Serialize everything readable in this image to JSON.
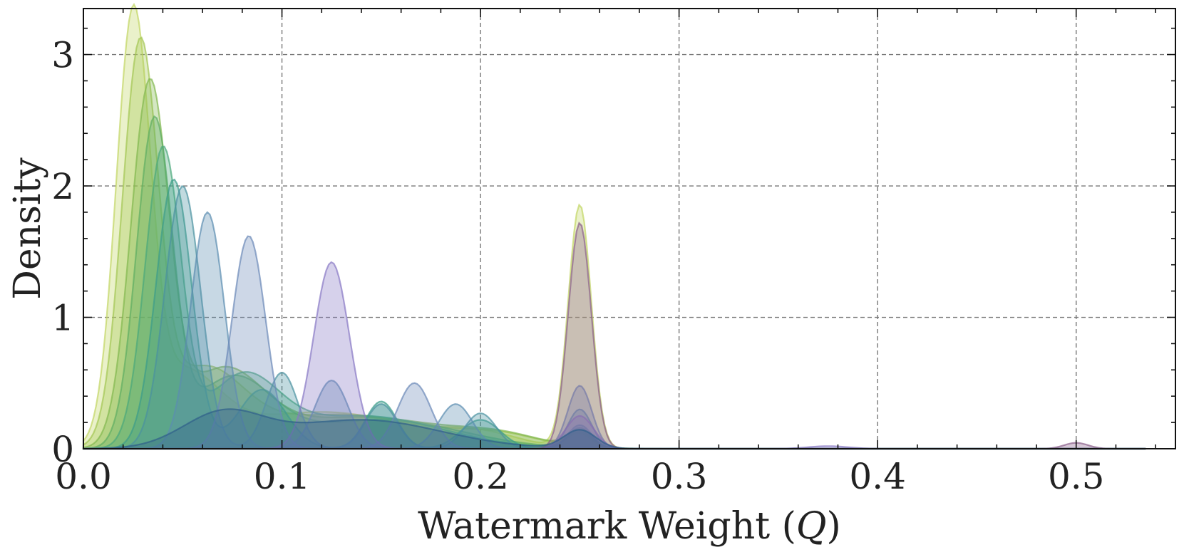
{
  "chart_data": {
    "type": "area",
    "xlabel": "Watermark Weight (",
    "xlabel_var": "Q",
    "xlabel_close": ")",
    "ylabel": "Density",
    "xlim": [
      0.0,
      0.55
    ],
    "ylim": [
      0,
      3.35
    ],
    "xticks": [
      "0.0",
      "0.1",
      "0.2",
      "0.3",
      "0.4",
      "0.5"
    ],
    "yticks": [
      "0",
      "1",
      "2",
      "3"
    ],
    "grid": true,
    "legend": "none",
    "series": [
      {
        "color": "#c2d563",
        "components": [
          [
            0.025,
            3.15,
            0.0085
          ],
          [
            0.05,
            0.52,
            0.018
          ],
          [
            0.12,
            0.28,
            0.045
          ],
          [
            0.2,
            0.09,
            0.02
          ],
          [
            0.25,
            1.85,
            0.0058
          ]
        ]
      },
      {
        "color": "#a3c653",
        "components": [
          [
            0.0285,
            2.95,
            0.009
          ],
          [
            0.06,
            0.55,
            0.02
          ],
          [
            0.13,
            0.26,
            0.045
          ],
          [
            0.21,
            0.08,
            0.02
          ],
          [
            0.25,
            0.1,
            0.0058
          ]
        ]
      },
      {
        "color": "#82b84e",
        "components": [
          [
            0.0333,
            2.7,
            0.0095
          ],
          [
            0.07,
            0.55,
            0.02
          ],
          [
            0.14,
            0.24,
            0.045
          ],
          [
            0.21,
            0.07,
            0.02
          ],
          [
            0.25,
            0.12,
            0.006
          ]
        ]
      },
      {
        "color": "#5fae63",
        "components": [
          [
            0.0357,
            2.45,
            0.009
          ],
          [
            0.075,
            0.52,
            0.02
          ],
          [
            0.15,
            0.22,
            0.04
          ],
          [
            0.25,
            0.12,
            0.006
          ]
        ]
      },
      {
        "color": "#4aa87a",
        "components": [
          [
            0.04,
            2.25,
            0.009
          ],
          [
            0.08,
            0.5,
            0.018
          ],
          [
            0.14,
            0.25,
            0.04
          ],
          [
            0.25,
            0.14,
            0.006
          ]
        ]
      },
      {
        "color": "#3c9c8a",
        "components": [
          [
            0.0455,
            2.05,
            0.009
          ],
          [
            0.09,
            0.45,
            0.012
          ],
          [
            0.15,
            0.36,
            0.008
          ],
          [
            0.2,
            0.22,
            0.01
          ],
          [
            0.25,
            0.16,
            0.006
          ]
        ]
      },
      {
        "color": "#4a92a0",
        "components": [
          [
            0.05,
            2.0,
            0.009
          ],
          [
            0.1,
            0.58,
            0.008
          ],
          [
            0.15,
            0.34,
            0.008
          ],
          [
            0.2,
            0.27,
            0.008
          ],
          [
            0.25,
            0.18,
            0.006
          ]
        ]
      },
      {
        "color": "#5b8db0",
        "components": [
          [
            0.0625,
            1.8,
            0.0085
          ],
          [
            0.125,
            0.52,
            0.0085
          ],
          [
            0.1875,
            0.34,
            0.0085
          ],
          [
            0.25,
            0.3,
            0.006
          ]
        ]
      },
      {
        "color": "#6b89b8",
        "components": [
          [
            0.0833,
            1.62,
            0.0085
          ],
          [
            0.1667,
            0.5,
            0.0085
          ],
          [
            0.25,
            0.48,
            0.006
          ]
        ]
      },
      {
        "color": "#8878c4",
        "components": [
          [
            0.125,
            1.42,
            0.009
          ],
          [
            0.25,
            0.25,
            0.007
          ],
          [
            0.375,
            0.02,
            0.01
          ]
        ]
      },
      {
        "color": "#8a5e8a",
        "components": [
          [
            0.25,
            1.72,
            0.0058
          ],
          [
            0.5,
            0.045,
            0.006
          ]
        ]
      },
      {
        "color": "#2f5f8a",
        "components": [
          [
            0.07,
            0.25,
            0.02
          ],
          [
            0.14,
            0.22,
            0.04
          ],
          [
            0.25,
            0.14,
            0.008
          ]
        ]
      }
    ]
  }
}
